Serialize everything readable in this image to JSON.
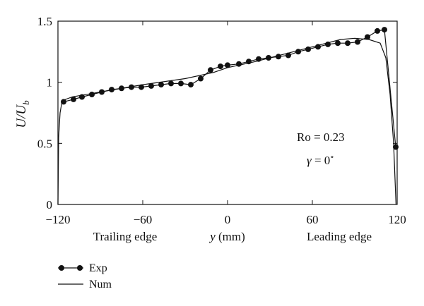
{
  "chart_data": {
    "type": "line",
    "title": "",
    "xlabel": "y (mm)",
    "xlabel_var": "y",
    "xlabel_unit": " (mm)",
    "ylabel": "U/U_b",
    "ylabel_text": "U/U",
    "ylabel_sub": "b",
    "xlim": [
      -120,
      120
    ],
    "ylim": [
      0,
      1.5
    ],
    "xticks": [
      -120,
      -60,
      0,
      60,
      120
    ],
    "xtick_labels": [
      "−120",
      "−60",
      "0",
      "60",
      "120"
    ],
    "yticks": [
      0,
      0.5,
      1,
      1.5
    ],
    "ytick_labels": [
      "0",
      "0.5",
      "1",
      "1.5"
    ],
    "grid": false,
    "annotations": {
      "trailing_edge": "Trailing edge",
      "leading_edge": "Leading edge",
      "ro": "Ro = 0.23",
      "gamma_symbol": "γ",
      "gamma_value": " = 0",
      "gamma_degree": "∘"
    },
    "legend": {
      "position": "bottom-left",
      "entries": [
        {
          "label": "Exp",
          "style": "line-with-markers"
        },
        {
          "label": "Num",
          "style": "line"
        }
      ]
    },
    "series": [
      {
        "name": "Exp",
        "style": "line-with-markers",
        "points": [
          [
            -116,
            0.84
          ],
          [
            -109,
            0.86
          ],
          [
            -103,
            0.88
          ],
          [
            -96,
            0.9
          ],
          [
            -89,
            0.92
          ],
          [
            -82,
            0.94
          ],
          [
            -75,
            0.95
          ],
          [
            -68,
            0.96
          ],
          [
            -61,
            0.96
          ],
          [
            -54,
            0.97
          ],
          [
            -47,
            0.98
          ],
          [
            -40,
            0.99
          ],
          [
            -33,
            0.99
          ],
          [
            -26,
            0.98
          ],
          [
            -19,
            1.03
          ],
          [
            -12,
            1.1
          ],
          [
            -5,
            1.13
          ],
          [
            0,
            1.14
          ],
          [
            8,
            1.15
          ],
          [
            15,
            1.17
          ],
          [
            22,
            1.19
          ],
          [
            29,
            1.2
          ],
          [
            36,
            1.21
          ],
          [
            43,
            1.22
          ],
          [
            50,
            1.25
          ],
          [
            57,
            1.27
          ],
          [
            64,
            1.29
          ],
          [
            71,
            1.31
          ],
          [
            78,
            1.32
          ],
          [
            85,
            1.32
          ],
          [
            92,
            1.33
          ],
          [
            99,
            1.37
          ],
          [
            106,
            1.42
          ],
          [
            111,
            1.43
          ],
          [
            119,
            0.47
          ]
        ]
      },
      {
        "name": "Num",
        "style": "line",
        "points": [
          [
            -120,
            0.0
          ],
          [
            -119.5,
            0.55
          ],
          [
            -118.5,
            0.75
          ],
          [
            -117,
            0.85
          ],
          [
            -110,
            0.88
          ],
          [
            -90,
            0.92
          ],
          [
            -60,
            0.98
          ],
          [
            -30,
            1.03
          ],
          [
            -10,
            1.08
          ],
          [
            0,
            1.12
          ],
          [
            20,
            1.17
          ],
          [
            40,
            1.23
          ],
          [
            60,
            1.29
          ],
          [
            80,
            1.35
          ],
          [
            90,
            1.36
          ],
          [
            100,
            1.35
          ],
          [
            108,
            1.32
          ],
          [
            112,
            1.2
          ],
          [
            115,
            0.9
          ],
          [
            117.5,
            0.5
          ],
          [
            119.2,
            0.0
          ]
        ]
      }
    ]
  }
}
